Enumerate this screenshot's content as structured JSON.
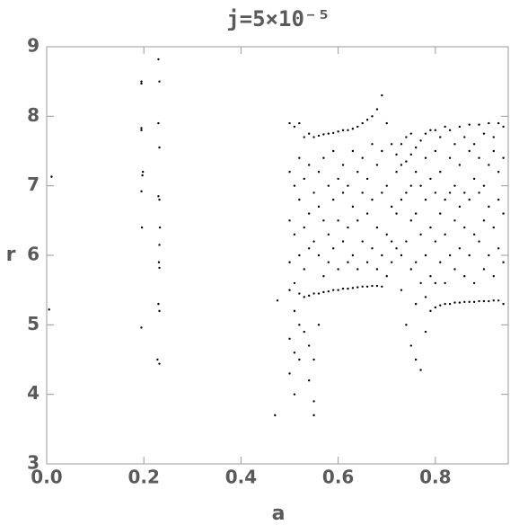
{
  "chart_data": {
    "type": "scatter",
    "title": "j=5×10⁻⁵",
    "x_label": "a",
    "y_label": "r",
    "color": "#000000",
    "xlim": [
      0,
      0.95
    ],
    "ylim": [
      3,
      9
    ],
    "xticks": [
      {
        "value": 0,
        "label": "0.0"
      },
      0.2,
      0.4,
      0.6,
      0.8
    ],
    "yticks": [
      3,
      4,
      5,
      6,
      7,
      8,
      9
    ],
    "x": [
      0.005,
      0.01,
      0.195,
      0.195,
      0.195,
      0.195,
      0.198,
      0.197,
      0.195,
      0.196,
      0.195,
      0.23,
      0.232,
      0.23,
      0.232,
      0.23,
      0.232,
      0.233,
      0.232,
      0.231,
      0.232,
      0.23,
      0.232,
      0.228,
      0.232,
      0.47,
      0.475,
      0.55,
      0.5,
      0.5,
      0.5,
      0.5,
      0.5,
      0.5,
      0.5,
      0.51,
      0.51,
      0.51,
      0.51,
      0.51,
      0.51,
      0.51,
      0.52,
      0.52,
      0.52,
      0.52,
      0.52,
      0.52,
      0.52,
      0.53,
      0.53,
      0.53,
      0.53,
      0.53,
      0.53,
      0.54,
      0.54,
      0.54,
      0.54,
      0.54,
      0.54,
      0.54,
      0.55,
      0.55,
      0.55,
      0.55,
      0.55,
      0.55,
      0.56,
      0.56,
      0.56,
      0.56,
      0.56,
      0.56,
      0.57,
      0.57,
      0.57,
      0.57,
      0.57,
      0.58,
      0.58,
      0.58,
      0.58,
      0.58,
      0.59,
      0.59,
      0.59,
      0.59,
      0.59,
      0.6,
      0.6,
      0.6,
      0.6,
      0.6,
      0.61,
      0.61,
      0.61,
      0.61,
      0.61,
      0.62,
      0.62,
      0.62,
      0.62,
      0.62,
      0.63,
      0.63,
      0.63,
      0.63,
      0.63,
      0.64,
      0.64,
      0.64,
      0.64,
      0.64,
      0.65,
      0.65,
      0.65,
      0.65,
      0.65,
      0.66,
      0.66,
      0.66,
      0.66,
      0.66,
      0.67,
      0.67,
      0.67,
      0.67,
      0.67,
      0.68,
      0.68,
      0.68,
      0.68,
      0.68,
      0.69,
      0.69,
      0.69,
      0.69,
      0.69,
      0.7,
      0.7,
      0.7,
      0.7,
      0.71,
      0.71,
      0.71,
      0.71,
      0.72,
      0.72,
      0.72,
      0.72,
      0.73,
      0.73,
      0.73,
      0.73,
      0.73,
      0.74,
      0.74,
      0.74,
      0.74,
      0.74,
      0.75,
      0.75,
      0.75,
      0.75,
      0.75,
      0.75,
      0.76,
      0.76,
      0.76,
      0.76,
      0.76,
      0.76,
      0.77,
      0.77,
      0.77,
      0.77,
      0.77,
      0.78,
      0.78,
      0.78,
      0.78,
      0.78,
      0.78,
      0.79,
      0.79,
      0.79,
      0.79,
      0.79,
      0.8,
      0.8,
      0.8,
      0.8,
      0.8,
      0.8,
      0.81,
      0.81,
      0.81,
      0.81,
      0.81,
      0.82,
      0.82,
      0.82,
      0.82,
      0.82,
      0.83,
      0.83,
      0.83,
      0.83,
      0.83,
      0.84,
      0.84,
      0.84,
      0.84,
      0.84,
      0.85,
      0.85,
      0.85,
      0.85,
      0.85,
      0.86,
      0.86,
      0.86,
      0.86,
      0.86,
      0.87,
      0.87,
      0.87,
      0.87,
      0.87,
      0.88,
      0.88,
      0.88,
      0.88,
      0.88,
      0.89,
      0.89,
      0.89,
      0.89,
      0.89,
      0.9,
      0.9,
      0.9,
      0.9,
      0.9,
      0.91,
      0.91,
      0.91,
      0.91,
      0.91,
      0.92,
      0.92,
      0.92,
      0.92,
      0.92,
      0.93,
      0.93,
      0.93,
      0.93,
      0.93,
      0.94,
      0.94,
      0.94,
      0.94,
      0.94
    ],
    "y": [
      5.22,
      7.13,
      8.5,
      8.47,
      7.83,
      7.8,
      7.2,
      7.15,
      6.92,
      6.4,
      4.96,
      8.82,
      8.5,
      7.9,
      7.55,
      6.85,
      6.8,
      6.4,
      6.15,
      5.9,
      5.82,
      5.3,
      5.2,
      4.5,
      4.44,
      3.7,
      5.35,
      3.7,
      7.9,
      7.2,
      6.5,
      5.9,
      5.5,
      4.8,
      4.3,
      7.85,
      7.0,
      6.3,
      5.6,
      5.2,
      4.6,
      4.0,
      7.9,
      7.4,
      6.8,
      6.0,
      5.45,
      5.0,
      4.5,
      7.7,
      7.1,
      6.4,
      5.8,
      5.4,
      4.9,
      7.75,
      7.3,
      6.6,
      6.1,
      5.42,
      4.7,
      4.2,
      7.7,
      6.9,
      6.2,
      5.45,
      4.5,
      3.9,
      7.72,
      7.2,
      6.7,
      6.0,
      5.45,
      5.0,
      7.74,
      7.4,
      6.5,
      5.7,
      5.47,
      7.75,
      7.0,
      6.3,
      5.9,
      5.48,
      7.76,
      7.5,
      6.8,
      6.1,
      5.5,
      7.78,
      7.1,
      6.5,
      5.8,
      5.5,
      7.8,
      7.3,
      6.9,
      6.2,
      5.52,
      7.8,
      7.0,
      6.4,
      5.9,
      5.52,
      7.82,
      7.5,
      6.7,
      6.0,
      5.53,
      7.85,
      7.2,
      6.5,
      5.8,
      5.54,
      7.9,
      7.4,
      6.9,
      6.2,
      5.55,
      7.95,
      7.1,
      6.6,
      5.9,
      5.55,
      8.0,
      7.6,
      6.8,
      6.1,
      5.56,
      8.1,
      7.3,
      6.4,
      5.8,
      5.56,
      8.3,
      7.5,
      6.9,
      6.0,
      5.55,
      7.9,
      7.0,
      6.3,
      5.7,
      7.6,
      6.7,
      6.2,
      5.9,
      7.45,
      7.2,
      6.6,
      6.1,
      7.3,
      7.6,
      6.8,
      6.0,
      5.5,
      7.35,
      7.7,
      6.9,
      6.2,
      5.0,
      7.45,
      7.75,
      7.0,
      6.5,
      5.8,
      4.7,
      7.55,
      7.2,
      6.6,
      5.9,
      5.3,
      4.5,
      7.65,
      7.0,
      6.3,
      5.6,
      4.35,
      7.75,
      7.4,
      6.8,
      6.0,
      5.4,
      4.9,
      7.8,
      7.1,
      6.4,
      5.7,
      5.2,
      7.8,
      7.5,
      6.9,
      6.2,
      5.6,
      5.25,
      7.7,
      7.2,
      6.6,
      5.9,
      5.28,
      7.85,
      6.8,
      6.3,
      5.6,
      5.3,
      7.8,
      7.4,
      6.9,
      6.0,
      5.3,
      7.6,
      7.0,
      6.5,
      5.8,
      5.32,
      7.85,
      7.3,
      6.7,
      6.1,
      5.32,
      7.7,
      6.9,
      6.4,
      5.7,
      5.33,
      7.88,
      7.5,
      6.8,
      6.0,
      5.33,
      7.6,
      7.1,
      6.3,
      5.6,
      5.33,
      7.88,
      7.4,
      6.9,
      6.2,
      5.34,
      7.75,
      7.0,
      6.5,
      5.8,
      5.34,
      7.9,
      7.3,
      6.7,
      6.0,
      5.34,
      7.7,
      7.5,
      6.4,
      5.7,
      5.35,
      7.9,
      7.2,
      6.8,
      6.1,
      5.35,
      7.85,
      7.4,
      6.6,
      5.9,
      5.3
    ]
  }
}
